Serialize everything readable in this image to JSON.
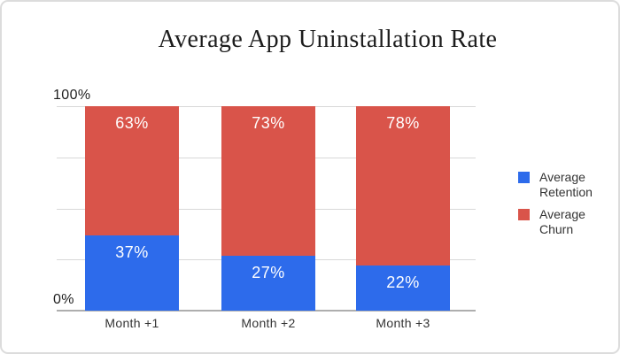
{
  "card": {
    "background": "#FFFFFF",
    "border_color": "#DCDCDC"
  },
  "y_axis": {
    "top_label": "100%",
    "bottom_label": "0%"
  },
  "chart_data": {
    "type": "bar",
    "stacked": true,
    "title": "Average App Uninstallation Rate",
    "categories": [
      "Month +1",
      "Month +2",
      "Month +3"
    ],
    "series": [
      {
        "name": "Average Retention",
        "color": "#2D6BEB",
        "values": [
          37,
          27,
          22
        ],
        "data_labels": [
          "37%",
          "27%",
          "22%"
        ]
      },
      {
        "name": "Average Churn",
        "color": "#D9544A",
        "values": [
          63,
          73,
          78
        ],
        "data_labels": [
          "63%",
          "73%",
          "78%"
        ]
      }
    ],
    "ylim": [
      0,
      100
    ],
    "y_tick_labels_visible": [
      "100%",
      "0%"
    ],
    "gridline_percents": [
      25,
      50,
      75,
      100
    ],
    "grid": true,
    "legend_position": "right",
    "data_label_color": "#FFFFFF"
  }
}
